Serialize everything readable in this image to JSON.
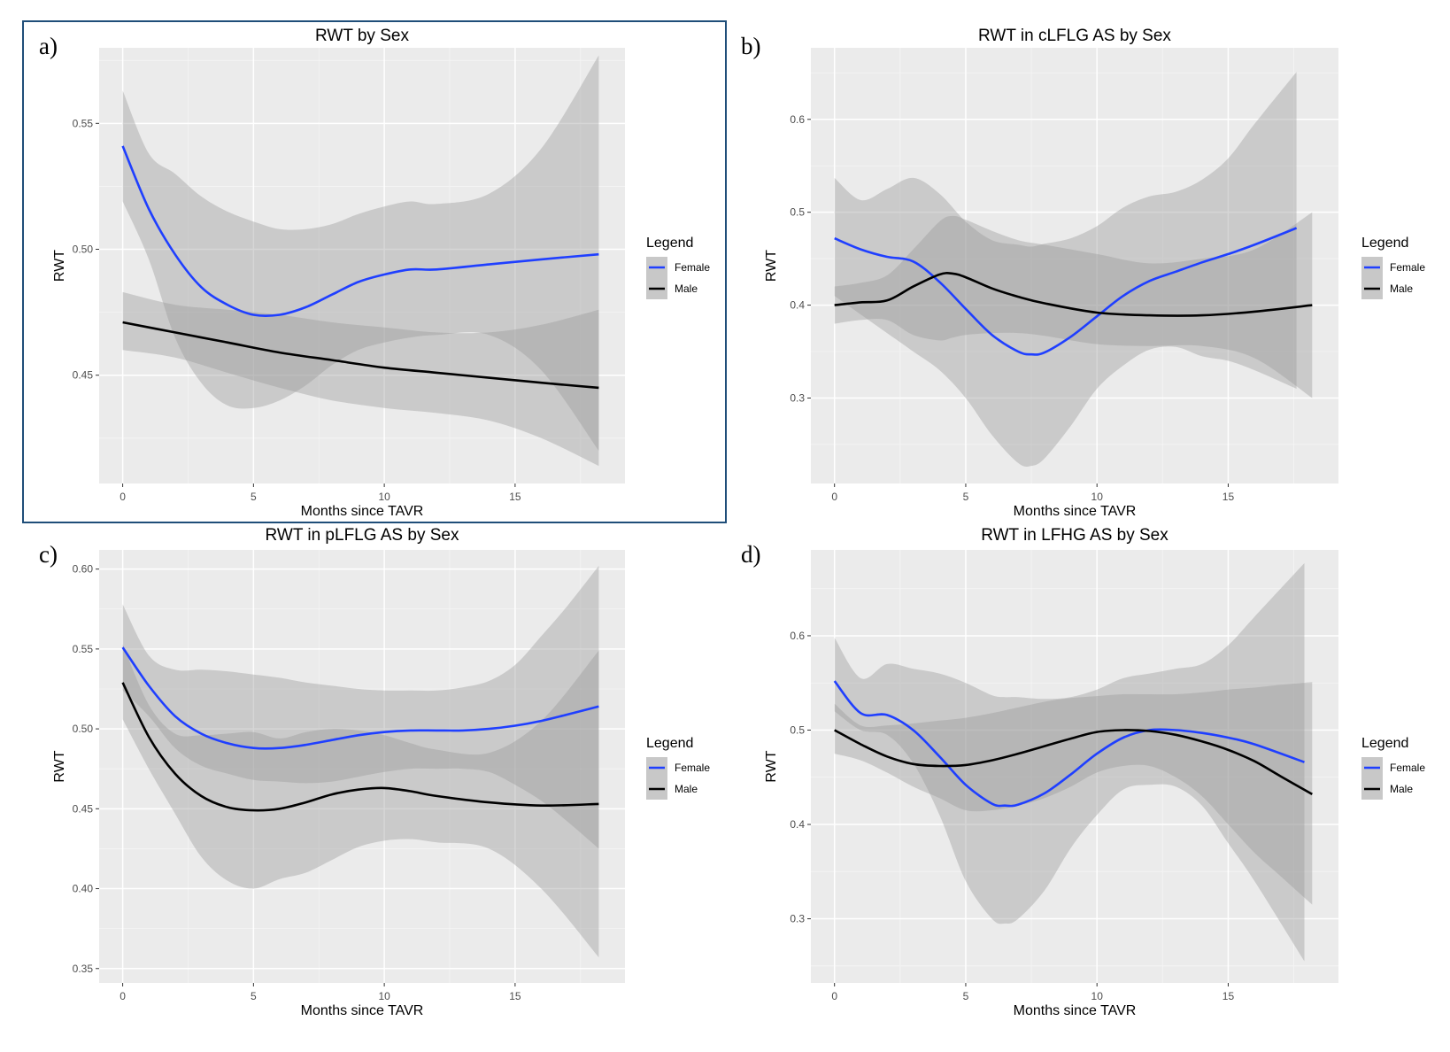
{
  "chart_data": [
    {
      "type": "line",
      "panel_label": "a)",
      "title": "RWT by Sex",
      "xlabel": "Months since TAVR",
      "ylabel": "RWT",
      "xlim": [
        -0.9,
        19.2
      ],
      "ylim": [
        0.407,
        0.58
      ],
      "xticks": [
        0,
        5,
        10,
        15
      ],
      "yticks": [
        0.45,
        0.5,
        0.55
      ],
      "ytick_labels": [
        "0.45",
        "0.50",
        "0.55"
      ],
      "grid": true,
      "legend": {
        "title": "Legend",
        "position": "right",
        "entries": [
          "Female",
          "Male"
        ]
      },
      "series": [
        {
          "name": "Female",
          "color": "#1f3fff",
          "x": [
            0,
            1,
            2,
            3,
            4,
            5,
            6,
            7,
            8,
            9,
            10,
            11,
            12,
            14,
            16,
            18.2
          ],
          "y": [
            0.541,
            0.516,
            0.498,
            0.485,
            0.478,
            0.474,
            0.474,
            0.477,
            0.482,
            0.487,
            0.49,
            0.492,
            0.492,
            0.494,
            0.496,
            0.498
          ],
          "lower": [
            0.519,
            0.496,
            0.465,
            0.447,
            0.438,
            0.437,
            0.44,
            0.446,
            0.454,
            0.46,
            0.463,
            0.465,
            0.466,
            0.466,
            0.452,
            0.42
          ],
          "upper": [
            0.563,
            0.538,
            0.53,
            0.521,
            0.515,
            0.511,
            0.508,
            0.508,
            0.51,
            0.514,
            0.517,
            0.519,
            0.518,
            0.522,
            0.54,
            0.577
          ]
        },
        {
          "name": "Male",
          "color": "#000000",
          "x": [
            0,
            2,
            4,
            6,
            8,
            10,
            12,
            14,
            16,
            18.2
          ],
          "y": [
            0.471,
            0.467,
            0.463,
            0.459,
            0.456,
            0.453,
            0.451,
            0.449,
            0.447,
            0.445
          ],
          "lower": [
            0.46,
            0.457,
            0.451,
            0.445,
            0.44,
            0.437,
            0.435,
            0.432,
            0.425,
            0.414
          ],
          "upper": [
            0.483,
            0.478,
            0.476,
            0.474,
            0.471,
            0.469,
            0.467,
            0.467,
            0.47,
            0.476
          ]
        }
      ]
    },
    {
      "type": "line",
      "panel_label": "b)",
      "title": "RWT in cLFLG AS by Sex",
      "xlabel": "Months since TAVR",
      "ylabel": "RWT",
      "xlim": [
        -0.9,
        19.2
      ],
      "ylim": [
        0.208,
        0.677
      ],
      "xticks": [
        0,
        5,
        10,
        15
      ],
      "yticks": [
        0.3,
        0.4,
        0.5,
        0.6
      ],
      "ytick_labels": [
        "0.3",
        "0.4",
        "0.5",
        "0.6"
      ],
      "grid": true,
      "legend": {
        "title": "Legend",
        "position": "right",
        "entries": [
          "Female",
          "Male"
        ]
      },
      "series": [
        {
          "name": "Female",
          "color": "#1f3fff",
          "x": [
            0,
            1,
            2,
            3,
            4,
            5,
            6,
            7,
            7.5,
            8,
            9,
            10,
            11,
            12,
            13,
            14,
            15,
            16,
            17.6
          ],
          "y": [
            0.472,
            0.46,
            0.452,
            0.447,
            0.425,
            0.396,
            0.368,
            0.35,
            0.347,
            0.349,
            0.366,
            0.388,
            0.41,
            0.426,
            0.436,
            0.446,
            0.455,
            0.465,
            0.483
          ],
          "lower": [
            0.41,
            0.39,
            0.37,
            0.35,
            0.33,
            0.3,
            0.26,
            0.23,
            0.227,
            0.235,
            0.27,
            0.31,
            0.335,
            0.352,
            0.355,
            0.345,
            0.34,
            0.33,
            0.31
          ],
          "upper": [
            0.537,
            0.513,
            0.525,
            0.537,
            0.52,
            0.49,
            0.47,
            0.465,
            0.463,
            0.466,
            0.472,
            0.485,
            0.505,
            0.517,
            0.522,
            0.535,
            0.558,
            0.595,
            0.651
          ]
        },
        {
          "name": "Male",
          "color": "#000000",
          "x": [
            0,
            1,
            2,
            3,
            4,
            4.5,
            5,
            6,
            7,
            8,
            10,
            12,
            14,
            16,
            18.2
          ],
          "y": [
            0.4,
            0.403,
            0.405,
            0.42,
            0.433,
            0.434,
            0.43,
            0.418,
            0.409,
            0.402,
            0.392,
            0.389,
            0.389,
            0.393,
            0.4
          ],
          "lower": [
            0.38,
            0.384,
            0.384,
            0.368,
            0.362,
            0.365,
            0.368,
            0.37,
            0.37,
            0.367,
            0.358,
            0.356,
            0.356,
            0.343,
            0.3
          ],
          "upper": [
            0.42,
            0.424,
            0.432,
            0.46,
            0.49,
            0.496,
            0.492,
            0.48,
            0.47,
            0.465,
            0.455,
            0.445,
            0.45,
            0.46,
            0.5
          ]
        }
      ]
    },
    {
      "type": "line",
      "panel_label": "c)",
      "title": "RWT in pLFLG AS by Sex",
      "xlabel": "Months since TAVR",
      "ylabel": "RWT",
      "xlim": [
        -0.9,
        19.2
      ],
      "ylim": [
        0.341,
        0.612
      ],
      "xticks": [
        0,
        5,
        10,
        15
      ],
      "yticks": [
        0.35,
        0.4,
        0.45,
        0.5,
        0.55,
        0.6
      ],
      "ytick_labels": [
        "0.35",
        "0.40",
        "0.45",
        "0.50",
        "0.55",
        "0.60"
      ],
      "grid": true,
      "legend": {
        "title": "Legend",
        "position": "right",
        "entries": [
          "Female",
          "Male"
        ]
      },
      "series": [
        {
          "name": "Female",
          "color": "#1f3fff",
          "x": [
            0,
            1,
            2,
            3,
            4,
            5,
            6,
            7,
            8,
            9,
            10,
            11,
            12,
            13,
            14,
            15,
            16,
            17,
            18.2
          ],
          "y": [
            0.551,
            0.527,
            0.508,
            0.497,
            0.491,
            0.488,
            0.488,
            0.49,
            0.493,
            0.496,
            0.498,
            0.499,
            0.499,
            0.499,
            0.5,
            0.502,
            0.505,
            0.509,
            0.514
          ],
          "lower": [
            0.524,
            0.508,
            0.488,
            0.477,
            0.472,
            0.468,
            0.467,
            0.466,
            0.467,
            0.47,
            0.473,
            0.475,
            0.475,
            0.475,
            0.473,
            0.465,
            0.455,
            0.442,
            0.425
          ],
          "upper": [
            0.578,
            0.546,
            0.537,
            0.537,
            0.536,
            0.534,
            0.532,
            0.529,
            0.527,
            0.525,
            0.524,
            0.524,
            0.524,
            0.526,
            0.53,
            0.54,
            0.558,
            0.577,
            0.602
          ]
        },
        {
          "name": "Male",
          "color": "#000000",
          "x": [
            0,
            1,
            2,
            3,
            4,
            5,
            6,
            7,
            8,
            9,
            10,
            11,
            12,
            14,
            16,
            18.2
          ],
          "y": [
            0.529,
            0.495,
            0.472,
            0.458,
            0.451,
            0.449,
            0.45,
            0.454,
            0.459,
            0.462,
            0.463,
            0.461,
            0.458,
            0.454,
            0.452,
            0.453
          ],
          "lower": [
            0.506,
            0.475,
            0.447,
            0.42,
            0.405,
            0.4,
            0.406,
            0.41,
            0.418,
            0.426,
            0.43,
            0.431,
            0.429,
            0.425,
            0.4,
            0.357
          ],
          "upper": [
            0.553,
            0.515,
            0.497,
            0.496,
            0.497,
            0.498,
            0.494,
            0.498,
            0.5,
            0.499,
            0.496,
            0.491,
            0.487,
            0.485,
            0.505,
            0.549
          ]
        }
      ]
    },
    {
      "type": "line",
      "panel_label": "d)",
      "title": "RWT in LFHG AS by Sex",
      "xlabel": "Months since TAVR",
      "ylabel": "RWT",
      "xlim": [
        -0.9,
        19.2
      ],
      "ylim": [
        0.232,
        0.691
      ],
      "xticks": [
        0,
        5,
        10,
        15
      ],
      "yticks": [
        0.3,
        0.4,
        0.5,
        0.6
      ],
      "ytick_labels": [
        "0.3",
        "0.4",
        "0.5",
        "0.6"
      ],
      "grid": true,
      "legend": {
        "title": "Legend",
        "position": "right",
        "entries": [
          "Female",
          "Male"
        ]
      },
      "series": [
        {
          "name": "Female",
          "color": "#1f3fff",
          "x": [
            0,
            1,
            2,
            3,
            4,
            5,
            6,
            6.5,
            7,
            8,
            9,
            10,
            11,
            12,
            13,
            14,
            15,
            16,
            17.9
          ],
          "y": [
            0.552,
            0.518,
            0.516,
            0.5,
            0.472,
            0.442,
            0.422,
            0.42,
            0.421,
            0.433,
            0.453,
            0.475,
            0.492,
            0.5,
            0.5,
            0.497,
            0.492,
            0.485,
            0.466
          ],
          "lower": [
            0.52,
            0.5,
            0.495,
            0.465,
            0.41,
            0.34,
            0.3,
            0.295,
            0.3,
            0.33,
            0.375,
            0.41,
            0.437,
            0.442,
            0.44,
            0.42,
            0.38,
            0.34,
            0.255
          ],
          "upper": [
            0.598,
            0.555,
            0.57,
            0.565,
            0.56,
            0.55,
            0.537,
            0.535,
            0.535,
            0.533,
            0.535,
            0.543,
            0.555,
            0.56,
            0.565,
            0.57,
            0.59,
            0.62,
            0.677
          ]
        },
        {
          "name": "Male",
          "color": "#000000",
          "x": [
            0,
            1,
            2,
            3,
            4,
            5,
            6,
            7,
            8,
            9,
            10,
            11,
            12,
            13,
            14,
            15,
            16,
            17,
            18.2
          ],
          "y": [
            0.5,
            0.485,
            0.472,
            0.464,
            0.462,
            0.463,
            0.468,
            0.475,
            0.483,
            0.491,
            0.498,
            0.5,
            0.499,
            0.495,
            0.488,
            0.479,
            0.467,
            0.451,
            0.432
          ],
          "lower": [
            0.475,
            0.468,
            0.455,
            0.44,
            0.428,
            0.415,
            0.415,
            0.42,
            0.428,
            0.44,
            0.455,
            0.462,
            0.462,
            0.45,
            0.43,
            0.4,
            0.37,
            0.345,
            0.315
          ],
          "upper": [
            0.528,
            0.505,
            0.505,
            0.507,
            0.51,
            0.513,
            0.518,
            0.524,
            0.53,
            0.534,
            0.536,
            0.538,
            0.538,
            0.538,
            0.54,
            0.543,
            0.545,
            0.548,
            0.551
          ]
        }
      ]
    }
  ]
}
